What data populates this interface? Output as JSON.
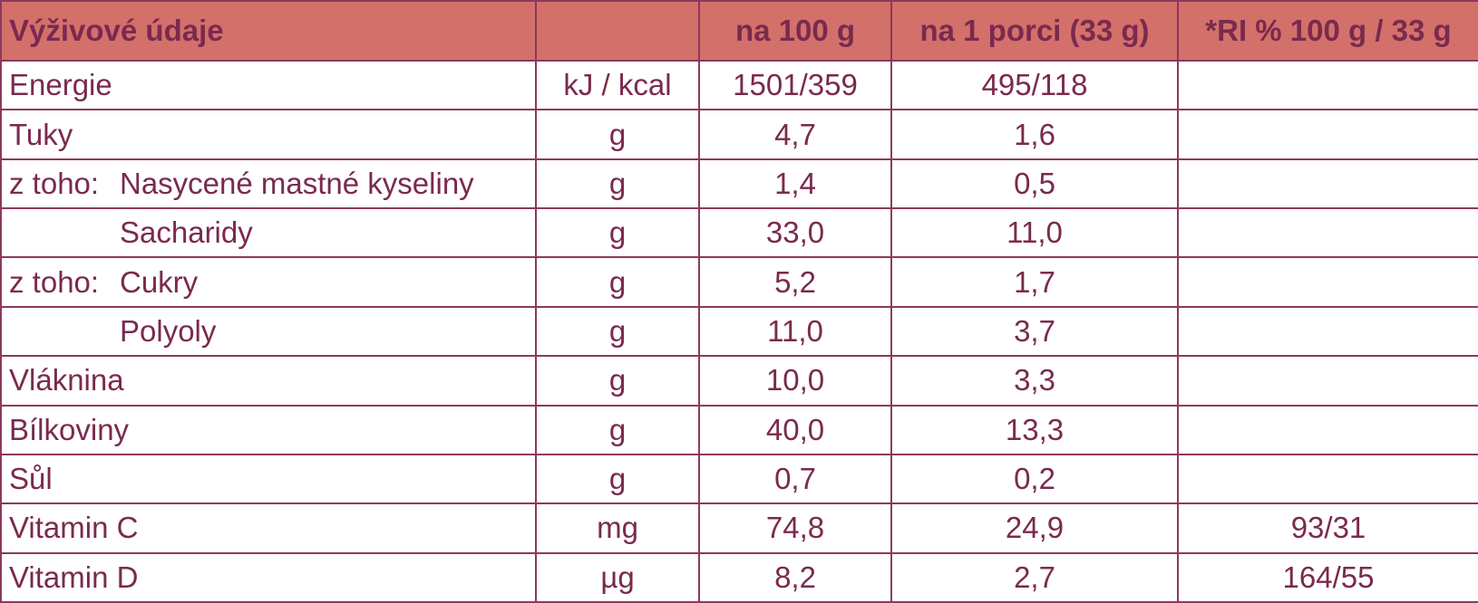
{
  "table": {
    "headers": [
      "Výživové údaje",
      "",
      "na 100 g",
      "na 1 porci (33 g)",
      "*RI % 100 g / 33 g"
    ],
    "rows": [
      {
        "prefix": "",
        "name": "Energie",
        "unit": "kJ / kcal",
        "per100": "1501/359",
        "perPortion": "495/118",
        "ri": ""
      },
      {
        "prefix": "",
        "name": "Tuky",
        "unit": "g",
        "per100": "4,7",
        "perPortion": "1,6",
        "ri": ""
      },
      {
        "prefix": "z toho:",
        "name": "Nasycené mastné kyseliny",
        "unit": "g",
        "per100": "1,4",
        "perPortion": "0,5",
        "ri": ""
      },
      {
        "prefix": "",
        "indent": true,
        "name": "Sacharidy",
        "unit": "g",
        "per100": "33,0",
        "perPortion": "11,0",
        "ri": ""
      },
      {
        "prefix": "z toho:",
        "name": "Cukry",
        "unit": "g",
        "per100": "5,2",
        "perPortion": "1,7",
        "ri": ""
      },
      {
        "prefix": "",
        "indent": true,
        "name": "Polyoly",
        "unit": "g",
        "per100": "11,0",
        "perPortion": "3,7",
        "ri": ""
      },
      {
        "prefix": "",
        "name": "Vláknina",
        "unit": "g",
        "per100": "10,0",
        "perPortion": "3,3",
        "ri": ""
      },
      {
        "prefix": "",
        "name": "Bílkoviny",
        "unit": "g",
        "per100": "40,0",
        "perPortion": "13,3",
        "ri": ""
      },
      {
        "prefix": "",
        "name": "Sůl",
        "unit": "g",
        "per100": "0,7",
        "perPortion": "0,2",
        "ri": ""
      },
      {
        "prefix": "",
        "name": "Vitamin C",
        "unit": "mg",
        "per100": "74,8",
        "perPortion": "24,9",
        "ri": "93/31"
      },
      {
        "prefix": "",
        "name": "Vitamin D",
        "unit": "µg",
        "per100": "8,2",
        "perPortion": "2,7",
        "ri": "164/55"
      }
    ]
  },
  "colors": {
    "header_background": "#d4706a",
    "text": "#7a2a4e",
    "border": "#8b3a5e"
  }
}
